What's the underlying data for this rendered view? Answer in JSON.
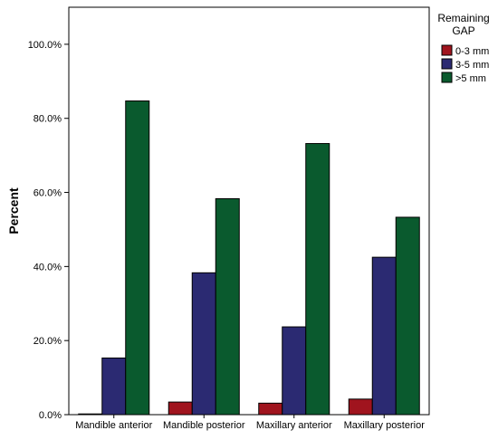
{
  "chart_data": {
    "type": "bar",
    "ylabel": "Percent",
    "xlabel": "",
    "ylim": [
      0,
      110
    ],
    "yticks": [
      0,
      20,
      40,
      60,
      80,
      100
    ],
    "ytick_labels": [
      "0.0%",
      "20.0%",
      "40.0%",
      "60.0%",
      "80.0%",
      "100.0%"
    ],
    "categories": [
      "Mandible anterior",
      "Mandible posterior",
      "Maxillary anterior",
      "Maxillary posterior"
    ],
    "legend": {
      "title_lines": [
        "Remaining",
        "GAP"
      ],
      "placement": "right"
    },
    "series": [
      {
        "name": "0-3 mm",
        "color": "#a0141e",
        "values": [
          0.0,
          3.4,
          3.1,
          4.2
        ]
      },
      {
        "name": "3-5 mm",
        "color": "#2b2a72",
        "values": [
          15.3,
          38.3,
          23.7,
          42.5
        ]
      },
      {
        "name": ">5 mm",
        "color": "#0a5a2e",
        "values": [
          84.7,
          58.3,
          73.2,
          53.3
        ]
      }
    ]
  }
}
